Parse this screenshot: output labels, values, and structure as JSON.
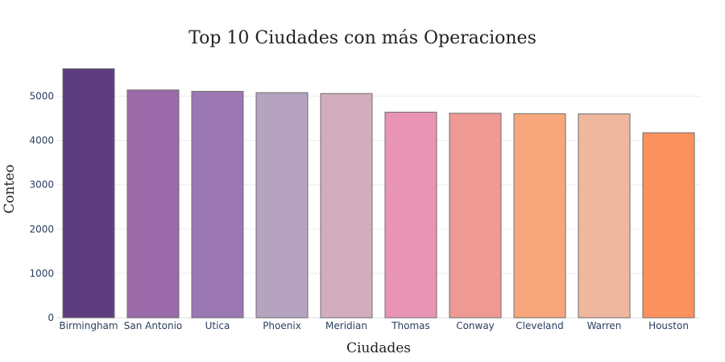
{
  "chart_data": {
    "type": "bar",
    "title": "Top 10 Ciudades con más Operaciones",
    "xlabel": "Ciudades",
    "ylabel": "Conteo",
    "categories": [
      "Birmingham",
      "San Antonio",
      "Utica",
      "Phoenix",
      "Meridian",
      "Thomas",
      "Conway",
      "Cleveland",
      "Warren",
      "Houston"
    ],
    "values": [
      5620,
      5140,
      5110,
      5080,
      5060,
      4640,
      4615,
      4605,
      4600,
      4175
    ],
    "colors": [
      "#5d3d80",
      "#9b6aa8",
      "#9b77b4",
      "#b5a3c0",
      "#d1adbd",
      "#e994b4",
      "#ee9994",
      "#f8a77c",
      "#efb79d",
      "#fb915d"
    ],
    "yticks": [
      0,
      1000,
      2000,
      3000,
      4000,
      5000
    ],
    "ylim": [
      0,
      5900
    ],
    "grid": true,
    "legend": false
  }
}
